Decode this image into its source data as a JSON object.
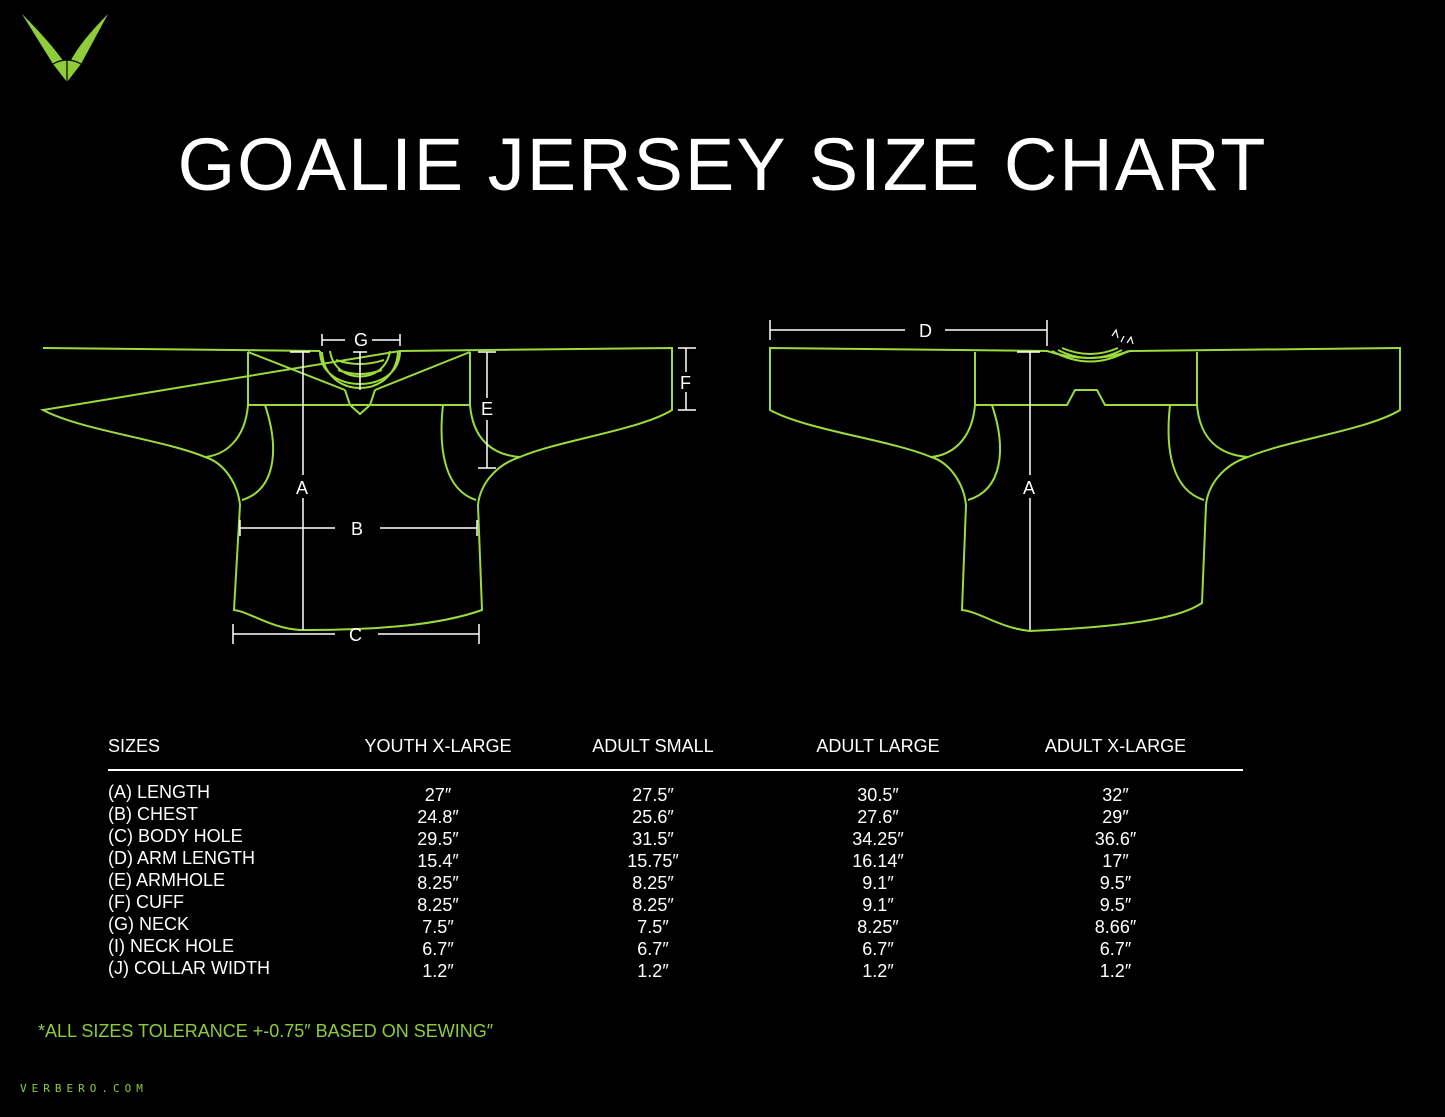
{
  "brand": {
    "logo": "verbero-v-logo",
    "accent": "#8fcc3a",
    "outline": "#9bdc3c",
    "website": "VERBERO.COM"
  },
  "title": "GOALIE JERSEY SIZE CHART",
  "diagram": {
    "front_labels": {
      "a": "A",
      "b": "B",
      "c": "C",
      "e": "E",
      "f": "F",
      "g": "G"
    },
    "back_labels": {
      "a": "A",
      "d": "D"
    }
  },
  "table": {
    "headers": [
      "SIZES",
      "YOUTH X-LARGE",
      "ADULT SMALL",
      "ADULT LARGE",
      "ADULT X-LARGE"
    ],
    "rows": [
      {
        "label": "(A) LENGTH",
        "values": [
          "27″",
          "27.5″",
          "30.5″",
          "32″"
        ]
      },
      {
        "label": "(B) CHEST",
        "values": [
          "24.8″",
          "25.6″",
          "27.6″",
          "29″"
        ]
      },
      {
        "label": "(C) BODY HOLE",
        "values": [
          "29.5″",
          "31.5″",
          "34.25″",
          "36.6″"
        ]
      },
      {
        "label": "(D) ARM LENGTH",
        "values": [
          "15.4″",
          "15.75″",
          "16.14″",
          "17″"
        ]
      },
      {
        "label": "(E) ARMHOLE",
        "values": [
          "8.25″",
          "8.25″",
          "9.1″",
          "9.5″"
        ]
      },
      {
        "label": "(F) CUFF",
        "values": [
          "8.25″",
          "8.25″",
          "9.1″",
          "9.5″"
        ]
      },
      {
        "label": "(G) NECK",
        "values": [
          "7.5″",
          "7.5″",
          "8.25″",
          "8.66″"
        ]
      },
      {
        "label": "(I) NECK HOLE",
        "values": [
          "6.7″",
          "6.7″",
          "6.7″",
          "6.7″"
        ]
      },
      {
        "label": "(J) COLLAR WIDTH",
        "values": [
          "1.2″",
          "1.2″",
          "1.2″",
          "1.2″"
        ]
      }
    ]
  },
  "note": "*ALL SIZES TOLERANCE +-0.75″ BASED ON SEWING″"
}
